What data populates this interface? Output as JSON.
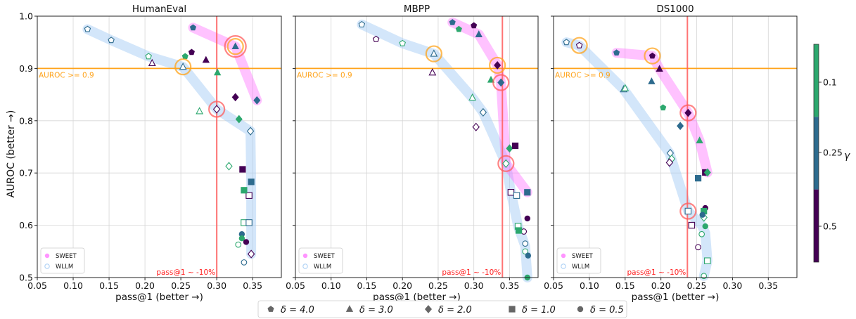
{
  "figure": {
    "y_axis_label": "AUROC (better →)",
    "x_axis_label": "pass@1 (better →)",
    "colorbar": {
      "label": "γ",
      "ticks": [
        "0.1",
        "0.25",
        "0.5"
      ],
      "colors": [
        "#2ca86e",
        "#2d6b8e",
        "#440154"
      ]
    },
    "legend_bottom": [
      "δ = 4.0",
      "δ = 3.0",
      "δ = 2.0",
      "δ = 1.0",
      "δ = 0.5"
    ],
    "colors": {
      "sweet_band": "#ff66ff",
      "wllm_band": "#a8cef5",
      "threshold_line": "#ffa31a",
      "pass_line": "#ff5c5c",
      "gamma_0.1": "#2ca86e",
      "gamma_0.25": "#2d6b8e",
      "gamma_0.5": "#440154"
    }
  },
  "chart_data": [
    {
      "type": "scatter",
      "title": "HumanEval",
      "xlabel": "pass@1 (better →)",
      "ylabel": "AUROC (better →)",
      "xlim": [
        0.05,
        0.39
      ],
      "ylim": [
        0.5,
        1.0
      ],
      "xticks": [
        "0.05",
        "0.10",
        "0.15",
        "0.20",
        "0.25",
        "0.30",
        "0.35"
      ],
      "yticks": [
        "0.5",
        "0.6",
        "0.7",
        "0.8",
        "0.9",
        "1.0"
      ],
      "grid": true,
      "legend": [
        "SWEET",
        "WLLM"
      ],
      "legend_position": "bottom-left",
      "hline": {
        "y": 0.9,
        "label": "AUROC >= 0.9"
      },
      "vline": {
        "x": 0.3,
        "label": "pass@1 ~ -10%"
      },
      "sweet_path": [
        [
          0.267,
          0.978
        ],
        [
          0.326,
          0.942
        ],
        [
          0.356,
          0.839
        ]
      ],
      "wllm_path": [
        [
          0.12,
          0.975
        ],
        [
          0.153,
          0.954
        ],
        [
          0.205,
          0.923
        ],
        [
          0.253,
          0.903
        ],
        [
          0.3,
          0.822
        ],
        [
          0.347,
          0.78
        ],
        [
          0.348,
          0.68
        ],
        [
          0.348,
          0.605
        ],
        [
          0.348,
          0.545
        ]
      ],
      "circles": [
        {
          "x": 0.326,
          "y": 0.942,
          "color": "#ff5c5c",
          "r": 15
        },
        {
          "x": 0.326,
          "y": 0.942,
          "color": "#ffa31a",
          "r": 11
        },
        {
          "x": 0.3,
          "y": 0.822,
          "color": "#ff5c5c",
          "r": 11
        },
        {
          "x": 0.253,
          "y": 0.903,
          "color": "#ffa31a",
          "r": 11
        }
      ],
      "points": [
        {
          "x": 0.267,
          "y": 0.978,
          "delta": 4.0,
          "gamma": 0.25,
          "filled": true
        },
        {
          "x": 0.265,
          "y": 0.931,
          "delta": 4.0,
          "gamma": 0.5,
          "filled": true
        },
        {
          "x": 0.256,
          "y": 0.923,
          "delta": 4.0,
          "gamma": 0.1,
          "filled": true
        },
        {
          "x": 0.326,
          "y": 0.942,
          "delta": 3.0,
          "gamma": 0.25,
          "filled": true
        },
        {
          "x": 0.285,
          "y": 0.916,
          "delta": 3.0,
          "gamma": 0.5,
          "filled": true
        },
        {
          "x": 0.301,
          "y": 0.892,
          "delta": 3.0,
          "gamma": 0.1,
          "filled": true
        },
        {
          "x": 0.356,
          "y": 0.839,
          "delta": 2.0,
          "gamma": 0.25,
          "filled": true
        },
        {
          "x": 0.326,
          "y": 0.845,
          "delta": 2.0,
          "gamma": 0.5,
          "filled": true
        },
        {
          "x": 0.331,
          "y": 0.803,
          "delta": 2.0,
          "gamma": 0.1,
          "filled": true
        },
        {
          "x": 0.336,
          "y": 0.707,
          "delta": 1.0,
          "gamma": 0.5,
          "filled": true
        },
        {
          "x": 0.338,
          "y": 0.667,
          "delta": 1.0,
          "gamma": 0.1,
          "filled": true
        },
        {
          "x": 0.348,
          "y": 0.683,
          "delta": 1.0,
          "gamma": 0.25,
          "filled": true
        },
        {
          "x": 0.335,
          "y": 0.583,
          "delta": 0.5,
          "gamma": 0.25,
          "filled": true
        },
        {
          "x": 0.335,
          "y": 0.575,
          "delta": 0.5,
          "gamma": 0.1,
          "filled": true
        },
        {
          "x": 0.341,
          "y": 0.568,
          "delta": 0.5,
          "gamma": 0.5,
          "filled": true
        },
        {
          "x": 0.12,
          "y": 0.975,
          "delta": 4.0,
          "gamma": 0.25,
          "filled": false
        },
        {
          "x": 0.153,
          "y": 0.954,
          "delta": 4.0,
          "gamma": 0.25,
          "filled": false
        },
        {
          "x": 0.205,
          "y": 0.923,
          "delta": 4.0,
          "gamma": 0.1,
          "filled": false
        },
        {
          "x": 0.21,
          "y": 0.91,
          "delta": 3.0,
          "gamma": 0.5,
          "filled": false
        },
        {
          "x": 0.253,
          "y": 0.903,
          "delta": 3.0,
          "gamma": 0.25,
          "filled": false
        },
        {
          "x": 0.276,
          "y": 0.818,
          "delta": 3.0,
          "gamma": 0.1,
          "filled": false
        },
        {
          "x": 0.3,
          "y": 0.822,
          "delta": 2.0,
          "gamma": 0.5,
          "filled": false
        },
        {
          "x": 0.347,
          "y": 0.78,
          "delta": 2.0,
          "gamma": 0.25,
          "filled": false
        },
        {
          "x": 0.317,
          "y": 0.713,
          "delta": 2.0,
          "gamma": 0.1,
          "filled": false
        },
        {
          "x": 0.345,
          "y": 0.657,
          "delta": 1.0,
          "gamma": 0.5,
          "filled": false
        },
        {
          "x": 0.338,
          "y": 0.605,
          "delta": 1.0,
          "gamma": 0.1,
          "filled": false
        },
        {
          "x": 0.345,
          "y": 0.605,
          "delta": 1.0,
          "gamma": 0.25,
          "filled": false
        },
        {
          "x": 0.33,
          "y": 0.563,
          "delta": 0.5,
          "gamma": 0.1,
          "filled": false
        },
        {
          "x": 0.348,
          "y": 0.545,
          "delta": 2.0,
          "gamma": 0.5,
          "filled": false
        },
        {
          "x": 0.338,
          "y": 0.529,
          "delta": 0.5,
          "gamma": 0.25,
          "filled": false
        }
      ]
    },
    {
      "type": "scatter",
      "title": "MBPP",
      "xlabel": "pass@1 (better →)",
      "ylabel": "",
      "xlim": [
        0.05,
        0.39
      ],
      "ylim": [
        0.5,
        1.0
      ],
      "xticks": [
        "0.05",
        "0.10",
        "0.15",
        "0.20",
        "0.25",
        "0.30",
        "0.35"
      ],
      "yticks": [],
      "grid": true,
      "legend": [
        "SWEET",
        "WLLM"
      ],
      "legend_position": "bottom-left",
      "hline": {
        "y": 0.9,
        "label": "AUROC >= 0.9"
      },
      "vline": {
        "x": 0.34,
        "label": "pass@1 ~ -10%"
      },
      "sweet_path": [
        [
          0.27,
          0.988
        ],
        [
          0.307,
          0.965
        ],
        [
          0.333,
          0.906
        ],
        [
          0.338,
          0.873
        ],
        [
          0.345,
          0.718
        ],
        [
          0.375,
          0.663
        ]
      ],
      "wllm_path": [
        [
          0.143,
          0.984
        ],
        [
          0.2,
          0.948
        ],
        [
          0.244,
          0.928
        ],
        [
          0.298,
          0.844
        ],
        [
          0.313,
          0.816
        ],
        [
          0.345,
          0.718
        ],
        [
          0.352,
          0.663
        ],
        [
          0.362,
          0.598
        ],
        [
          0.372,
          0.56
        ],
        [
          0.375,
          0.5
        ]
      ],
      "circles": [
        {
          "x": 0.333,
          "y": 0.906,
          "color": "#ffa31a",
          "r": 11
        },
        {
          "x": 0.338,
          "y": 0.873,
          "color": "#ff5c5c",
          "r": 11
        },
        {
          "x": 0.244,
          "y": 0.928,
          "color": "#ffa31a",
          "r": 11
        },
        {
          "x": 0.345,
          "y": 0.718,
          "color": "#ff5c5c",
          "r": 11
        }
      ],
      "points": [
        {
          "x": 0.27,
          "y": 0.988,
          "delta": 4.0,
          "gamma": 0.25,
          "filled": true
        },
        {
          "x": 0.3,
          "y": 0.982,
          "delta": 4.0,
          "gamma": 0.5,
          "filled": true
        },
        {
          "x": 0.279,
          "y": 0.975,
          "delta": 4.0,
          "gamma": 0.1,
          "filled": true
        },
        {
          "x": 0.307,
          "y": 0.965,
          "delta": 3.0,
          "gamma": 0.25,
          "filled": true
        },
        {
          "x": 0.333,
          "y": 0.906,
          "delta": 2.0,
          "gamma": 0.5,
          "filled": true
        },
        {
          "x": 0.324,
          "y": 0.878,
          "delta": 3.0,
          "gamma": 0.1,
          "filled": true
        },
        {
          "x": 0.338,
          "y": 0.873,
          "delta": 2.0,
          "gamma": 0.25,
          "filled": true
        },
        {
          "x": 0.35,
          "y": 0.747,
          "delta": 2.0,
          "gamma": 0.1,
          "filled": true
        },
        {
          "x": 0.358,
          "y": 0.752,
          "delta": 1.0,
          "gamma": 0.5,
          "filled": true
        },
        {
          "x": 0.375,
          "y": 0.663,
          "delta": 1.0,
          "gamma": 0.25,
          "filled": true
        },
        {
          "x": 0.363,
          "y": 0.59,
          "delta": 1.0,
          "gamma": 0.1,
          "filled": true
        },
        {
          "x": 0.375,
          "y": 0.613,
          "delta": 0.5,
          "gamma": 0.5,
          "filled": true
        },
        {
          "x": 0.376,
          "y": 0.542,
          "delta": 0.5,
          "gamma": 0.25,
          "filled": true
        },
        {
          "x": 0.375,
          "y": 0.5,
          "delta": 0.5,
          "gamma": 0.1,
          "filled": true
        },
        {
          "x": 0.143,
          "y": 0.984,
          "delta": 4.0,
          "gamma": 0.25,
          "filled": false
        },
        {
          "x": 0.163,
          "y": 0.956,
          "delta": 4.0,
          "gamma": 0.5,
          "filled": false
        },
        {
          "x": 0.2,
          "y": 0.948,
          "delta": 4.0,
          "gamma": 0.1,
          "filled": false
        },
        {
          "x": 0.244,
          "y": 0.928,
          "delta": 3.0,
          "gamma": 0.25,
          "filled": false
        },
        {
          "x": 0.242,
          "y": 0.892,
          "delta": 3.0,
          "gamma": 0.5,
          "filled": false
        },
        {
          "x": 0.298,
          "y": 0.844,
          "delta": 3.0,
          "gamma": 0.1,
          "filled": false
        },
        {
          "x": 0.313,
          "y": 0.816,
          "delta": 2.0,
          "gamma": 0.25,
          "filled": false
        },
        {
          "x": 0.303,
          "y": 0.788,
          "delta": 2.0,
          "gamma": 0.5,
          "filled": false
        },
        {
          "x": 0.345,
          "y": 0.718,
          "delta": 2.0,
          "gamma": 0.1,
          "filled": false
        },
        {
          "x": 0.352,
          "y": 0.663,
          "delta": 1.0,
          "gamma": 0.5,
          "filled": false
        },
        {
          "x": 0.36,
          "y": 0.657,
          "delta": 1.0,
          "gamma": 0.25,
          "filled": false
        },
        {
          "x": 0.362,
          "y": 0.598,
          "delta": 1.0,
          "gamma": 0.1,
          "filled": false
        },
        {
          "x": 0.37,
          "y": 0.588,
          "delta": 0.5,
          "gamma": 0.5,
          "filled": false
        },
        {
          "x": 0.372,
          "y": 0.565,
          "delta": 0.5,
          "gamma": 0.25,
          "filled": false
        },
        {
          "x": 0.372,
          "y": 0.55,
          "delta": 0.5,
          "gamma": 0.1,
          "filled": false
        }
      ]
    },
    {
      "type": "scatter",
      "title": "DS1000",
      "xlabel": "pass@1 (better →)",
      "ylabel": "",
      "xlim": [
        0.05,
        0.39
      ],
      "ylim": [
        0.5,
        1.0
      ],
      "xticks": [
        "0.05",
        "0.10",
        "0.15",
        "0.20",
        "0.25",
        "0.30",
        "0.35"
      ],
      "yticks": [],
      "grid": true,
      "legend": [
        "SWEET",
        "WLLM"
      ],
      "legend_position": "bottom-left",
      "hline": {
        "y": 0.9,
        "label": "AUROC >= 0.9"
      },
      "vline": {
        "x": 0.237,
        "label": "pass@1 ~ -10%"
      },
      "sweet_path": [
        [
          0.138,
          0.93
        ],
        [
          0.188,
          0.924
        ],
        [
          0.198,
          0.899
        ],
        [
          0.238,
          0.815
        ],
        [
          0.254,
          0.762
        ],
        [
          0.265,
          0.701
        ]
      ],
      "wllm_path": [
        [
          0.068,
          0.95
        ],
        [
          0.086,
          0.944
        ],
        [
          0.148,
          0.86
        ],
        [
          0.212,
          0.738
        ],
        [
          0.238,
          0.627
        ],
        [
          0.257,
          0.6
        ],
        [
          0.262,
          0.585
        ],
        [
          0.265,
          0.532
        ],
        [
          0.26,
          0.503
        ]
      ],
      "circles": [
        {
          "x": 0.086,
          "y": 0.944,
          "color": "#ffa31a",
          "r": 11
        },
        {
          "x": 0.188,
          "y": 0.924,
          "color": "#ffa31a",
          "r": 11
        },
        {
          "x": 0.238,
          "y": 0.815,
          "color": "#ff5c5c",
          "r": 11
        },
        {
          "x": 0.238,
          "y": 0.627,
          "color": "#ff5c5c",
          "r": 11
        }
      ],
      "points": [
        {
          "x": 0.138,
          "y": 0.93,
          "delta": 4.0,
          "gamma": 0.25,
          "filled": true
        },
        {
          "x": 0.188,
          "y": 0.924,
          "delta": 4.0,
          "gamma": 0.5,
          "filled": true
        },
        {
          "x": 0.198,
          "y": 0.899,
          "delta": 3.0,
          "gamma": 0.5,
          "filled": true
        },
        {
          "x": 0.187,
          "y": 0.875,
          "delta": 3.0,
          "gamma": 0.25,
          "filled": true
        },
        {
          "x": 0.203,
          "y": 0.825,
          "delta": 4.0,
          "gamma": 0.1,
          "filled": true
        },
        {
          "x": 0.238,
          "y": 0.815,
          "delta": 2.0,
          "gamma": 0.5,
          "filled": true
        },
        {
          "x": 0.227,
          "y": 0.79,
          "delta": 2.0,
          "gamma": 0.25,
          "filled": true
        },
        {
          "x": 0.254,
          "y": 0.762,
          "delta": 3.0,
          "gamma": 0.1,
          "filled": true
        },
        {
          "x": 0.262,
          "y": 0.701,
          "delta": 1.0,
          "gamma": 0.5,
          "filled": true
        },
        {
          "x": 0.265,
          "y": 0.701,
          "delta": 2.0,
          "gamma": 0.1,
          "filled": true
        },
        {
          "x": 0.252,
          "y": 0.69,
          "delta": 1.0,
          "gamma": 0.25,
          "filled": true
        },
        {
          "x": 0.262,
          "y": 0.633,
          "delta": 0.5,
          "gamma": 0.5,
          "filled": true
        },
        {
          "x": 0.26,
          "y": 0.627,
          "delta": 1.0,
          "gamma": 0.1,
          "filled": true
        },
        {
          "x": 0.258,
          "y": 0.62,
          "delta": 0.5,
          "gamma": 0.25,
          "filled": true
        },
        {
          "x": 0.262,
          "y": 0.598,
          "delta": 0.5,
          "gamma": 0.1,
          "filled": true
        },
        {
          "x": 0.068,
          "y": 0.95,
          "delta": 4.0,
          "gamma": 0.25,
          "filled": false
        },
        {
          "x": 0.086,
          "y": 0.944,
          "delta": 4.0,
          "gamma": 0.5,
          "filled": false
        },
        {
          "x": 0.148,
          "y": 0.86,
          "delta": 3.0,
          "gamma": 0.25,
          "filled": false
        },
        {
          "x": 0.15,
          "y": 0.862,
          "delta": 3.0,
          "gamma": 0.1,
          "filled": false
        },
        {
          "x": 0.213,
          "y": 0.738,
          "delta": 2.0,
          "gamma": 0.25,
          "filled": false
        },
        {
          "x": 0.215,
          "y": 0.727,
          "delta": 2.0,
          "gamma": 0.1,
          "filled": false
        },
        {
          "x": 0.212,
          "y": 0.72,
          "delta": 2.0,
          "gamma": 0.5,
          "filled": false
        },
        {
          "x": 0.238,
          "y": 0.627,
          "delta": 1.0,
          "gamma": 0.25,
          "filled": false
        },
        {
          "x": 0.243,
          "y": 0.6,
          "delta": 1.0,
          "gamma": 0.5,
          "filled": false
        },
        {
          "x": 0.257,
          "y": 0.583,
          "delta": 0.5,
          "gamma": 0.1,
          "filled": false
        },
        {
          "x": 0.252,
          "y": 0.558,
          "delta": 0.5,
          "gamma": 0.5,
          "filled": false
        },
        {
          "x": 0.26,
          "y": 0.615,
          "delta": 2.0,
          "gamma": 0.1,
          "filled": false
        },
        {
          "x": 0.265,
          "y": 0.532,
          "delta": 1.0,
          "gamma": 0.1,
          "filled": false
        },
        {
          "x": 0.26,
          "y": 0.503,
          "delta": 0.5,
          "gamma": 0.1,
          "filled": false
        }
      ]
    }
  ]
}
